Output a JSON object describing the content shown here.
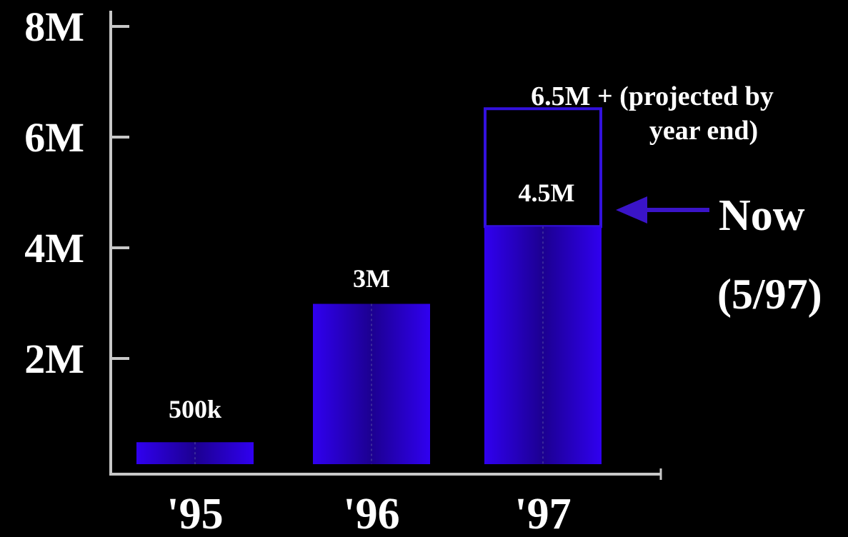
{
  "chart_data": {
    "type": "bar",
    "categories": [
      "'95",
      "'96",
      "'97"
    ],
    "values": [
      0.5,
      3,
      4.5
    ],
    "data_labels": [
      "500k",
      "3M",
      "4.5M"
    ],
    "projected": {
      "category": "'97",
      "value": 6.5,
      "label_line1": "6.5M + (projected by",
      "label_line2": "year end)"
    },
    "annotation": {
      "line1": "Now",
      "line2": "(5/97)",
      "points_to_value": 4.5
    },
    "yticks": [
      2,
      4,
      6,
      8
    ],
    "ytick_labels": [
      "2M",
      "4M",
      "6M",
      "8M"
    ],
    "ylim": [
      0,
      8.6
    ],
    "grid": false,
    "colors": {
      "bar": "#2a00dd",
      "bar_dark": "#1e0099",
      "outline": "#3311dd",
      "arrow": "#3a14c8",
      "axis": "#c8c8c8",
      "text": "#ffffff",
      "background": "#000000"
    }
  }
}
